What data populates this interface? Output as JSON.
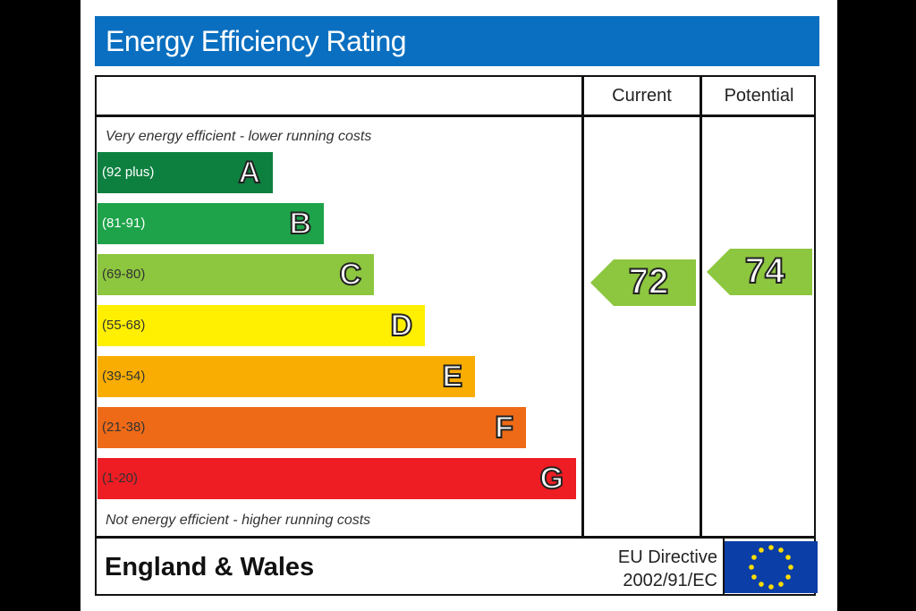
{
  "title": "Energy Efficiency Rating",
  "columns": {
    "current": "Current",
    "potential": "Potential"
  },
  "top_caption": "Very energy efficient - lower running costs",
  "bottom_caption": "Not energy efficient - higher running costs",
  "footer": {
    "region": "England & Wales",
    "directive_line1": "EU Directive",
    "directive_line2": "2002/91/EC"
  },
  "chart_data": {
    "type": "bar",
    "title": "Energy Efficiency Rating",
    "categories": [
      "A",
      "B",
      "C",
      "D",
      "E",
      "F",
      "G"
    ],
    "bands": [
      {
        "letter": "A",
        "range": "(92 plus)",
        "min": 92,
        "max": 100,
        "color": "#0d8040",
        "text_color": "#ffffff"
      },
      {
        "letter": "B",
        "range": "(81-91)",
        "min": 81,
        "max": 91,
        "color": "#1ea34a",
        "text_color": "#ffffff"
      },
      {
        "letter": "C",
        "range": "(69-80)",
        "min": 69,
        "max": 80,
        "color": "#8dc63f",
        "text_color": "#333333"
      },
      {
        "letter": "D",
        "range": "(55-68)",
        "min": 55,
        "max": 68,
        "color": "#ffef00",
        "text_color": "#333333"
      },
      {
        "letter": "E",
        "range": "(39-54)",
        "min": 39,
        "max": 54,
        "color": "#f9ad02",
        "text_color": "#333333"
      },
      {
        "letter": "F",
        "range": "(21-38)",
        "min": 21,
        "max": 38,
        "color": "#ef6a17",
        "text_color": "#333333"
      },
      {
        "letter": "G",
        "range": "(1-20)",
        "min": 1,
        "max": 20,
        "color": "#ee1c23",
        "text_color": "#333333"
      }
    ],
    "current": {
      "label": "Current",
      "value": 72,
      "band": "C"
    },
    "potential": {
      "label": "Potential",
      "value": 74,
      "band": "C"
    },
    "legend": "none"
  }
}
